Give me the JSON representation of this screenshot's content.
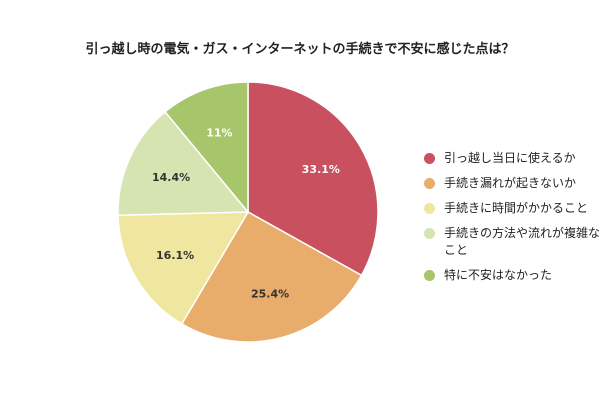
{
  "chart_data": {
    "type": "pie",
    "title": "引っ越し時の電気・ガス・インターネットの手続きで不安に感じた点は？",
    "slices": [
      {
        "label": "引っ越し当日に使えるか",
        "value": 33.1,
        "value_label": "33.1%",
        "color": "#c9505e",
        "label_color": "#ffffff"
      },
      {
        "label": "手続き漏れが起きないか",
        "value": 25.4,
        "value_label": "25.4%",
        "color": "#e8ac6b",
        "label_color": "#333333"
      },
      {
        "label": "手続きに時間がかかること",
        "value": 16.1,
        "value_label": "16.1%",
        "color": "#efe6a0",
        "label_color": "#333333"
      },
      {
        "label": "手続きの方法や流れが複雑なこと",
        "value": 14.4,
        "value_label": "14.4%",
        "color": "#d6e4b2",
        "label_color": "#333333"
      },
      {
        "label": "特に不安はなかった",
        "value": 11,
        "value_label": "11%",
        "color": "#a7c56b",
        "label_color": "#ffffff"
      }
    ],
    "start_angle_deg": 0,
    "direction": "clockwise",
    "legend_position": "right"
  }
}
